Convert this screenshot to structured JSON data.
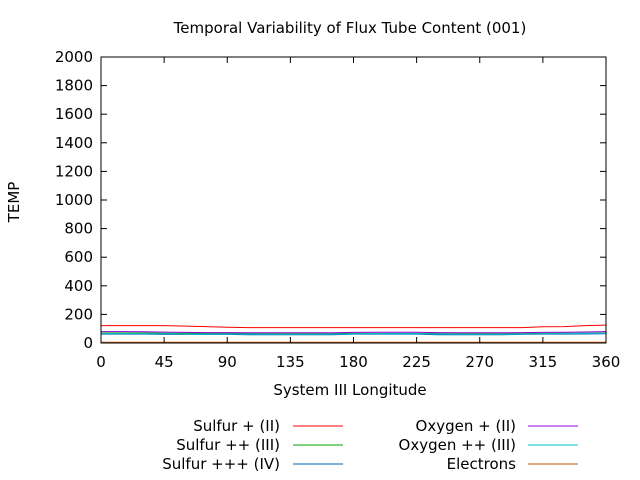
{
  "chart_data": {
    "type": "line",
    "title": "Temporal Variability of Flux Tube Content (001)",
    "xlabel": "System III Longitude",
    "ylabel": "TEMP",
    "xlim": [
      0,
      360
    ],
    "ylim": [
      0,
      2000
    ],
    "xticks": [
      0,
      45,
      90,
      135,
      180,
      225,
      270,
      315,
      360
    ],
    "yticks": [
      0,
      200,
      400,
      600,
      800,
      1000,
      1200,
      1400,
      1600,
      1800,
      2000
    ],
    "grid": false,
    "legend_position": "bottom",
    "x": [
      0,
      15,
      30,
      45,
      60,
      75,
      90,
      105,
      120,
      135,
      150,
      165,
      180,
      195,
      210,
      225,
      240,
      255,
      270,
      285,
      300,
      315,
      330,
      345,
      360
    ],
    "series": [
      {
        "name": "Sulfur + (II)",
        "color": "#ff0000",
        "values": [
          122,
          122,
          122,
          122,
          118,
          115,
          110,
          108,
          108,
          108,
          108,
          108,
          108,
          108,
          108,
          108,
          108,
          108,
          108,
          108,
          108,
          113,
          115,
          122,
          125
        ]
      },
      {
        "name": "Sulfur ++ (III)",
        "color": "#00a000",
        "values": [
          70,
          70,
          70,
          68,
          67,
          67,
          67,
          66,
          65,
          65,
          65,
          66,
          67,
          67,
          67,
          67,
          66,
          65,
          65,
          65,
          66,
          67,
          68,
          68,
          70
        ]
      },
      {
        "name": "Sulfur +++ (IV)",
        "color": "#0060ad",
        "values": [
          62,
          62,
          62,
          60,
          60,
          60,
          60,
          58,
          57,
          57,
          57,
          58,
          62,
          62,
          62,
          62,
          58,
          57,
          57,
          57,
          60,
          62,
          62,
          63,
          65
        ]
      },
      {
        "name": "Oxygen + (II)",
        "color": "#9400d3",
        "values": [
          80,
          80,
          79,
          76,
          74,
          73,
          73,
          72,
          71,
          71,
          71,
          72,
          74,
          75,
          75,
          75,
          73,
          71,
          71,
          71,
          73,
          74,
          75,
          77,
          80
        ]
      },
      {
        "name": "Oxygen ++ (III)",
        "color": "#00c0d0",
        "values": [
          66,
          66,
          65,
          64,
          63,
          63,
          63,
          62,
          61,
          61,
          61,
          62,
          65,
          66,
          66,
          66,
          63,
          61,
          61,
          61,
          63,
          65,
          66,
          67,
          68
        ]
      },
      {
        "name": "Electrons",
        "color": "#c05000",
        "values": [
          5,
          5,
          5,
          5,
          5,
          5,
          5,
          5,
          5,
          5,
          5,
          5,
          5,
          5,
          5,
          5,
          5,
          5,
          5,
          5,
          5,
          5,
          5,
          5,
          5
        ]
      }
    ]
  }
}
